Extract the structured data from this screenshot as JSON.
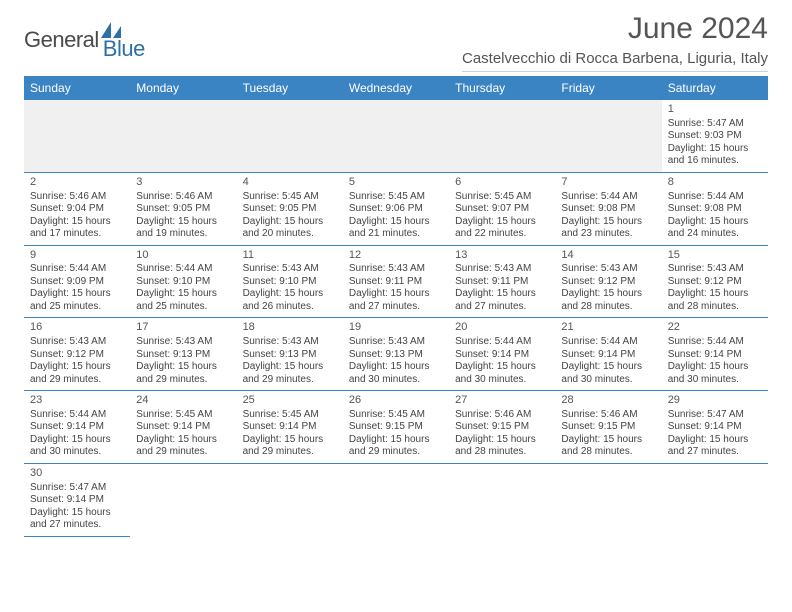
{
  "logo": {
    "textDark": "General",
    "textBlue": "Blue"
  },
  "title": "June 2024",
  "location": "Castelvecchio di Rocca Barbena, Liguria, Italy",
  "colors": {
    "headerBg": "#3b84c4",
    "headerText": "#ffffff",
    "bodyText": "#444444",
    "logoBlue": "#2f6fa7",
    "emptyBg": "#f0f0f0",
    "cellBorder": "#3b84c4"
  },
  "weekdays": [
    "Sunday",
    "Monday",
    "Tuesday",
    "Wednesday",
    "Thursday",
    "Friday",
    "Saturday"
  ],
  "weeks": [
    [
      null,
      null,
      null,
      null,
      null,
      null,
      {
        "d": "1",
        "sr": "5:47 AM",
        "ss": "9:03 PM",
        "dl": "15 hours and 16 minutes."
      }
    ],
    [
      {
        "d": "2",
        "sr": "5:46 AM",
        "ss": "9:04 PM",
        "dl": "15 hours and 17 minutes."
      },
      {
        "d": "3",
        "sr": "5:46 AM",
        "ss": "9:05 PM",
        "dl": "15 hours and 19 minutes."
      },
      {
        "d": "4",
        "sr": "5:45 AM",
        "ss": "9:05 PM",
        "dl": "15 hours and 20 minutes."
      },
      {
        "d": "5",
        "sr": "5:45 AM",
        "ss": "9:06 PM",
        "dl": "15 hours and 21 minutes."
      },
      {
        "d": "6",
        "sr": "5:45 AM",
        "ss": "9:07 PM",
        "dl": "15 hours and 22 minutes."
      },
      {
        "d": "7",
        "sr": "5:44 AM",
        "ss": "9:08 PM",
        "dl": "15 hours and 23 minutes."
      },
      {
        "d": "8",
        "sr": "5:44 AM",
        "ss": "9:08 PM",
        "dl": "15 hours and 24 minutes."
      }
    ],
    [
      {
        "d": "9",
        "sr": "5:44 AM",
        "ss": "9:09 PM",
        "dl": "15 hours and 25 minutes."
      },
      {
        "d": "10",
        "sr": "5:44 AM",
        "ss": "9:10 PM",
        "dl": "15 hours and 25 minutes."
      },
      {
        "d": "11",
        "sr": "5:43 AM",
        "ss": "9:10 PM",
        "dl": "15 hours and 26 minutes."
      },
      {
        "d": "12",
        "sr": "5:43 AM",
        "ss": "9:11 PM",
        "dl": "15 hours and 27 minutes."
      },
      {
        "d": "13",
        "sr": "5:43 AM",
        "ss": "9:11 PM",
        "dl": "15 hours and 27 minutes."
      },
      {
        "d": "14",
        "sr": "5:43 AM",
        "ss": "9:12 PM",
        "dl": "15 hours and 28 minutes."
      },
      {
        "d": "15",
        "sr": "5:43 AM",
        "ss": "9:12 PM",
        "dl": "15 hours and 28 minutes."
      }
    ],
    [
      {
        "d": "16",
        "sr": "5:43 AM",
        "ss": "9:12 PM",
        "dl": "15 hours and 29 minutes."
      },
      {
        "d": "17",
        "sr": "5:43 AM",
        "ss": "9:13 PM",
        "dl": "15 hours and 29 minutes."
      },
      {
        "d": "18",
        "sr": "5:43 AM",
        "ss": "9:13 PM",
        "dl": "15 hours and 29 minutes."
      },
      {
        "d": "19",
        "sr": "5:43 AM",
        "ss": "9:13 PM",
        "dl": "15 hours and 30 minutes."
      },
      {
        "d": "20",
        "sr": "5:44 AM",
        "ss": "9:14 PM",
        "dl": "15 hours and 30 minutes."
      },
      {
        "d": "21",
        "sr": "5:44 AM",
        "ss": "9:14 PM",
        "dl": "15 hours and 30 minutes."
      },
      {
        "d": "22",
        "sr": "5:44 AM",
        "ss": "9:14 PM",
        "dl": "15 hours and 30 minutes."
      }
    ],
    [
      {
        "d": "23",
        "sr": "5:44 AM",
        "ss": "9:14 PM",
        "dl": "15 hours and 30 minutes."
      },
      {
        "d": "24",
        "sr": "5:45 AM",
        "ss": "9:14 PM",
        "dl": "15 hours and 29 minutes."
      },
      {
        "d": "25",
        "sr": "5:45 AM",
        "ss": "9:14 PM",
        "dl": "15 hours and 29 minutes."
      },
      {
        "d": "26",
        "sr": "5:45 AM",
        "ss": "9:15 PM",
        "dl": "15 hours and 29 minutes."
      },
      {
        "d": "27",
        "sr": "5:46 AM",
        "ss": "9:15 PM",
        "dl": "15 hours and 28 minutes."
      },
      {
        "d": "28",
        "sr": "5:46 AM",
        "ss": "9:15 PM",
        "dl": "15 hours and 28 minutes."
      },
      {
        "d": "29",
        "sr": "5:47 AM",
        "ss": "9:14 PM",
        "dl": "15 hours and 27 minutes."
      }
    ],
    [
      {
        "d": "30",
        "sr": "5:47 AM",
        "ss": "9:14 PM",
        "dl": "15 hours and 27 minutes."
      },
      null,
      null,
      null,
      null,
      null,
      null
    ]
  ],
  "labels": {
    "sunrise": "Sunrise:",
    "sunset": "Sunset:",
    "daylight": "Daylight:"
  }
}
